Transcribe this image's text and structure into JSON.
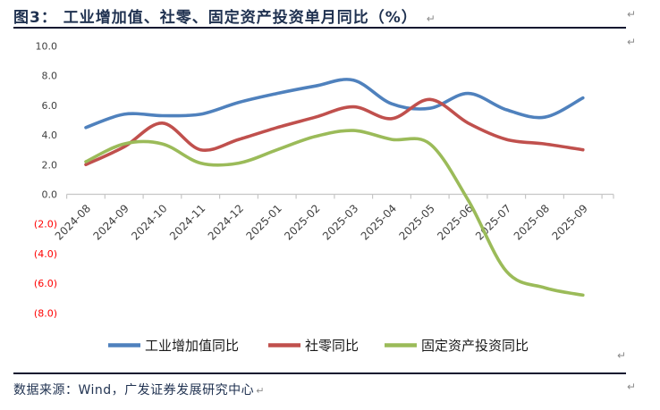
{
  "title": {
    "text": "图3：  工业增加值、社零、固定资产投资单月同比（%）"
  },
  "marks": {
    "pilcrow": "↵"
  },
  "source": {
    "text": "数据来源：Wind，广发证券发展研究中心"
  },
  "chart_data": {
    "type": "line",
    "smooth": true,
    "grid": false,
    "legend_position": "bottom",
    "title": "工业增加值、社零、固定资产投资单月同比（%）",
    "xlabel": "",
    "ylabel": "",
    "categories": [
      "2024-08",
      "2024-09",
      "2024-10",
      "2024-11",
      "2024-12",
      "2025-01",
      "2025-02",
      "2025-03",
      "2025-04",
      "2025-05",
      "2025-06",
      "2025-07",
      "2025-08",
      "2025-09"
    ],
    "series": [
      {
        "name": "工业增加值同比",
        "color": "#4F81BD",
        "values": [
          4.5,
          5.4,
          5.3,
          5.4,
          6.2,
          6.8,
          7.3,
          7.7,
          6.1,
          5.8,
          6.8,
          5.7,
          5.2,
          6.5
        ]
      },
      {
        "name": "社零同比",
        "color": "#C0504D",
        "values": [
          2.0,
          3.2,
          4.8,
          3.0,
          3.7,
          4.5,
          5.2,
          5.9,
          5.1,
          6.4,
          4.8,
          3.7,
          3.4,
          3.0
        ]
      },
      {
        "name": "固定资产投资同比",
        "color": "#9BBB59",
        "values": [
          2.2,
          3.4,
          3.4,
          2.1,
          2.1,
          3.0,
          3.9,
          4.3,
          3.7,
          3.4,
          -0.4,
          -5.2,
          -6.3,
          -6.8
        ]
      }
    ],
    "y_axis": {
      "min": -8,
      "max": 10,
      "step": 2,
      "ticks": [
        {
          "value": 10,
          "label": "10.0"
        },
        {
          "value": 8,
          "label": "8.0"
        },
        {
          "value": 6,
          "label": "6.0"
        },
        {
          "value": 4,
          "label": "4.0"
        },
        {
          "value": 2,
          "label": "2.0"
        },
        {
          "value": 0,
          "label": "0.0"
        },
        {
          "value": -2,
          "label": "(2.0)"
        },
        {
          "value": -4,
          "label": "(4.0)"
        },
        {
          "value": -6,
          "label": "(6.0)"
        },
        {
          "value": -8,
          "label": "(8.0)"
        }
      ],
      "label_color": "#404040",
      "negative_label_color": "#FF0000"
    },
    "x_label_color": "#404040",
    "axis_color": "#C6C6C6",
    "legend_text_color": "#1a1a1a"
  }
}
